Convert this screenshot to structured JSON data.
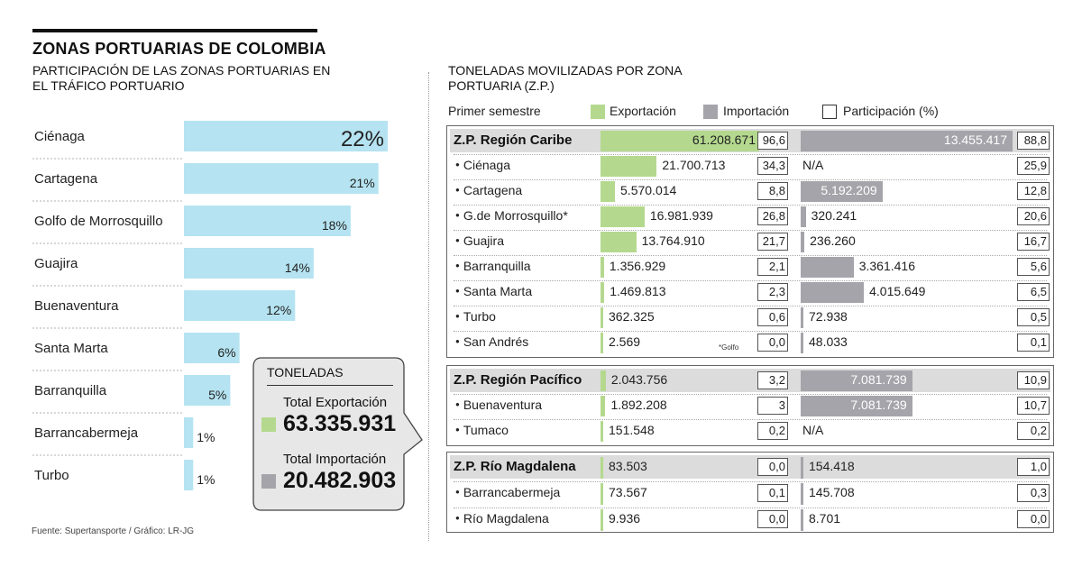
{
  "title": "ZONAS PORTUARIAS DE COLOMBIA",
  "subtitle": "PARTICIPACIÓN DE LAS ZONAS PORTUARIAS EN EL TRÁFICO PORTUARIO",
  "right_title": "TONELADAS MOVILIZADAS POR ZONA PORTUARIA (Z.P.)",
  "legend": {
    "period": "Primer semestre",
    "export": "Exportación",
    "import": "Importación",
    "share": "Participación (%)"
  },
  "totals": {
    "heading": "TONELADAS",
    "export_label": "Total Exportación",
    "export_value": "63.335.931",
    "import_label": "Total Importación",
    "import_value": "20.482.903"
  },
  "source": "Fuente: Supertansporte / Gráfico: LR-JG",
  "note": "*Golfo",
  "colors": {
    "bar": "#b5e3f1",
    "export": "#b4d98e",
    "import": "#a4a4aa",
    "band": "#dcdcdc"
  },
  "chart_data": [
    {
      "type": "bar",
      "orientation": "horizontal",
      "title": "",
      "categories": [
        "Ciénaga",
        "Cartagena",
        "Golfo de Morrosquillo",
        "Guajira",
        "Buenaventura",
        "Santa Marta",
        "Barranquilla",
        "Barrancabermeja",
        "Turbo"
      ],
      "values": [
        22,
        21,
        18,
        14,
        12,
        6,
        5,
        1,
        1
      ],
      "labels": [
        "22%",
        "21%",
        "18%",
        "14%",
        "12%",
        "6%",
        "5%",
        "1%",
        "1%"
      ],
      "xlim": [
        0,
        22
      ],
      "grid": false
    },
    {
      "type": "table",
      "groups": [
        {
          "name": "Z.P. Región Caribe",
          "summary": {
            "export": "61.208.671",
            "export_pct": "96,6",
            "import": "13.455.417",
            "import_pct": "88,8"
          },
          "rows": [
            {
              "name": "Ciénaga",
              "export": "21.700.713",
              "export_pct": "34,3",
              "import": "N/A",
              "import_pct": "25,9"
            },
            {
              "name": "Cartagena",
              "export": "5.570.014",
              "export_pct": "8,8",
              "import": "5.192.209",
              "import_pct": "12,8"
            },
            {
              "name": "G.de Morrosquillo*",
              "export": "16.981.939",
              "export_pct": "26,8",
              "import": "320.241",
              "import_pct": "20,6"
            },
            {
              "name": "Guajira",
              "export": "13.764.910",
              "export_pct": "21,7",
              "import": "236.260",
              "import_pct": "16,7"
            },
            {
              "name": "Barranquilla",
              "export": "1.356.929",
              "export_pct": "2,1",
              "import": "3.361.416",
              "import_pct": "5,6"
            },
            {
              "name": "Santa Marta",
              "export": "1.469.813",
              "export_pct": "2,3",
              "import": "4.015.649",
              "import_pct": "6,5"
            },
            {
              "name": "Turbo",
              "export": "362.325",
              "export_pct": "0,6",
              "import": "72.938",
              "import_pct": "0,5"
            },
            {
              "name": "San Andrés",
              "export": "2.569",
              "export_pct": "0,0",
              "import": "48.033",
              "import_pct": "0,1"
            }
          ]
        },
        {
          "name": "Z.P. Región Pacífico",
          "summary": {
            "export": "2.043.756",
            "export_pct": "3,2",
            "import": "7.081.739",
            "import_pct": "10,9"
          },
          "rows": [
            {
              "name": "Buenaventura",
              "export": "1.892.208",
              "export_pct": "3",
              "import": "7.081.739",
              "import_pct": "10,7"
            },
            {
              "name": "Tumaco",
              "export": "151.548",
              "export_pct": "0,2",
              "import": "N/A",
              "import_pct": "0,2"
            }
          ]
        },
        {
          "name": "Z.P. Río Magdalena",
          "summary": {
            "export": "83.503",
            "export_pct": "0,0",
            "import": "154.418",
            "import_pct": "1,0"
          },
          "rows": [
            {
              "name": "Barrancabermeja",
              "export": "73.567",
              "export_pct": "0,1",
              "import": "145.708",
              "import_pct": "0,3"
            },
            {
              "name": "Río Magdalena",
              "export": "9.936",
              "export_pct": "0,0",
              "import": "8.701",
              "import_pct": "0,0"
            }
          ]
        }
      ]
    }
  ]
}
